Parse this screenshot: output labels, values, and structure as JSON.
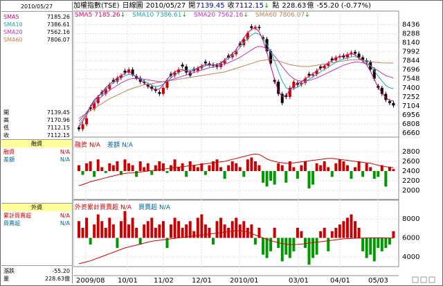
{
  "header": {
    "name": "加權指數(TSE)",
    "chart_kind": "日線圖",
    "date": "2010/05/27",
    "open_label": "開",
    "open": "7139.45",
    "close_label": "收",
    "close": "7112.15",
    "arrow": "↓",
    "unit_label": "點",
    "volume": "228.63",
    "volume_unit": "億",
    "change": "-55.20 (-0.77%)"
  },
  "left_panel": {
    "date": "2010/05/27",
    "ma": [
      {
        "label": "SMA5",
        "value": "7185.26",
        "color": "#d4006a"
      },
      {
        "label": "SMA10",
        "value": "7386.61",
        "color": "#1aa7b0"
      },
      {
        "label": "SMA20",
        "value": "7562.16",
        "color": "#c030c0"
      },
      {
        "label": "SMA60",
        "value": "7806.07",
        "color": "#c08050"
      }
    ],
    "ohlc": [
      {
        "label": "開",
        "value": "7139.45"
      },
      {
        "label": "高",
        "value": "7170.96"
      },
      {
        "label": "低",
        "value": "7112.15"
      },
      {
        "label": "收",
        "value": "7112.15"
      }
    ],
    "margin_header": "融資",
    "margin_rows": [
      {
        "label": "融資",
        "value": "N/A"
      },
      {
        "label": "差額",
        "value": "N/A"
      }
    ],
    "foreign_header": "外資",
    "foreign_rows": [
      {
        "label": "累計買賣超",
        "value": "N/A"
      },
      {
        "label": "買賣超",
        "value": "N/A"
      }
    ],
    "bottom_rows": [
      {
        "label": "漲跌",
        "value": "-55.20"
      },
      {
        "label": "量",
        "value": "228.63億"
      }
    ]
  },
  "ma_legend": [
    {
      "label": "SMA5",
      "value": "7185.26",
      "arrow": "↓",
      "color": "#d4006a"
    },
    {
      "label": "SMA10",
      "value": "7386.61",
      "arrow": "↓",
      "color": "#1aa7b0"
    },
    {
      "label": "SMA20",
      "value": "7562.16",
      "arrow": "↓",
      "color": "#c030c0"
    },
    {
      "label": "SMA60",
      "value": "7806.07",
      "arrow": "↓",
      "color": "#c08050"
    }
  ],
  "margin_legend": [
    {
      "label": "融資",
      "value": "N/A",
      "color": "#cc0000"
    },
    {
      "label": "差額",
      "value": "N/A",
      "color": "#006699"
    }
  ],
  "foreign_legend": [
    {
      "label": "外資累計買賣超",
      "value": "N/A",
      "color": "#cc0000"
    },
    {
      "label": "買賣超",
      "value": "N/A",
      "color": "#006699"
    }
  ],
  "chart_data": {
    "type": "candlestick",
    "price_axis": {
      "ticks": [
        8436,
        8288,
        8140,
        7992,
        7844,
        7696,
        7548,
        7400,
        7252,
        7104,
        6956,
        6808,
        6660
      ],
      "range": [
        6590,
        8500
      ]
    },
    "margin_axis": {
      "ticks": [
        2800,
        2600,
        2400,
        2200,
        2000
      ],
      "range": [
        1800,
        2900
      ]
    },
    "foreign_axis": {
      "ticks": [
        8000,
        6000,
        4000
      ],
      "range": [
        3000,
        9000
      ]
    },
    "x_ticks": [
      "2009/08",
      "10/01",
      "11/02",
      "12/01",
      "2010/01",
      "03/01",
      "04/01",
      "05/03"
    ],
    "close_path": [
      6720,
      6800,
      6900,
      7050,
      7150,
      7250,
      7300,
      7380,
      7450,
      7500,
      7560,
      7600,
      7650,
      7700,
      7620,
      7560,
      7500,
      7480,
      7420,
      7380,
      7350,
      7300,
      7400,
      7520,
      7600,
      7650,
      7700,
      7750,
      7650,
      7600,
      7680,
      7720,
      7760,
      7800,
      7780,
      7760,
      7740,
      7800,
      7850,
      7900,
      7950,
      8000,
      8100,
      8200,
      8300,
      8380,
      8400,
      8380,
      8200,
      8000,
      7800,
      7500,
      7300,
      7150,
      7250,
      7400,
      7500,
      7450,
      7480,
      7550,
      7600,
      7620,
      7680,
      7720,
      7760,
      7800,
      7850,
      7900,
      7920,
      7900,
      7950,
      7980,
      7960,
      7900,
      7850,
      7820,
      7700,
      7550,
      7400,
      7300,
      7200,
      7150,
      7110
    ],
    "sma5": [
      6760,
      6850,
      6950,
      7100,
      7200,
      7260,
      7320,
      7400,
      7460,
      7510,
      7560,
      7600,
      7640,
      7680,
      7620,
      7580,
      7530,
      7480,
      7430,
      7390,
      7370,
      7380,
      7450,
      7540,
      7610,
      7660,
      7690,
      7700,
      7670,
      7660,
      7690,
      7730,
      7760,
      7780,
      7780,
      7770,
      7780,
      7810,
      7860,
      7910,
      7960,
      8030,
      8120,
      8220,
      8300,
      8360,
      8380,
      8320,
      8180,
      7980,
      7760,
      7540,
      7350,
      7250,
      7270,
      7360,
      7440,
      7470,
      7500,
      7550,
      7590,
      7630,
      7680,
      7720,
      7760,
      7810,
      7850,
      7890,
      7910,
      7920,
      7940,
      7960,
      7940,
      7890,
      7840,
      7780,
      7670,
      7540,
      7410,
      7320,
      7240,
      7190,
      7185
    ],
    "sma10": [
      6800,
      6880,
      6980,
      7090,
      7180,
      7250,
      7310,
      7370,
      7430,
      7480,
      7520,
      7560,
      7600,
      7620,
      7610,
      7580,
      7550,
      7510,
      7470,
      7440,
      7420,
      7430,
      7460,
      7510,
      7560,
      7610,
      7650,
      7680,
      7690,
      7690,
      7700,
      7720,
      7740,
      7760,
      7770,
      7770,
      7780,
      7800,
      7840,
      7880,
      7930,
      7990,
      8060,
      8140,
      8210,
      8270,
      8300,
      8280,
      8210,
      8110,
      7990,
      7840,
      7670,
      7510,
      7400,
      7370,
      7380,
      7410,
      7450,
      7500,
      7540,
      7580,
      7620,
      7660,
      7700,
      7740,
      7780,
      7820,
      7850,
      7870,
      7890,
      7910,
      7910,
      7890,
      7860,
      7820,
      7760,
      7680,
      7590,
      7510,
      7440,
      7400,
      7386
    ],
    "sma20": [
      6850,
      6920,
      7000,
      7080,
      7150,
      7210,
      7260,
      7310,
      7360,
      7400,
      7440,
      7480,
      7510,
      7540,
      7550,
      7550,
      7550,
      7540,
      7530,
      7520,
      7510,
      7500,
      7500,
      7510,
      7530,
      7550,
      7570,
      7590,
      7610,
      7630,
      7650,
      7670,
      7690,
      7710,
      7730,
      7740,
      7750,
      7770,
      7790,
      7810,
      7840,
      7870,
      7900,
      7940,
      7980,
      8020,
      8060,
      8080,
      8070,
      8040,
      7990,
      7920,
      7840,
      7750,
      7670,
      7600,
      7550,
      7520,
      7510,
      7510,
      7520,
      7540,
      7560,
      7590,
      7620,
      7650,
      7680,
      7710,
      7740,
      7770,
      7790,
      7810,
      7820,
      7820,
      7810,
      7790,
      7760,
      7720,
      7680,
      7640,
      7600,
      7580,
      7562
    ],
    "sma60": [
      6900,
      6940,
      6980,
      7020,
      7060,
      7100,
      7140,
      7180,
      7220,
      7250,
      7280,
      7310,
      7340,
      7370,
      7390,
      7410,
      7430,
      7450,
      7460,
      7470,
      7480,
      7490,
      7500,
      7510,
      7520,
      7530,
      7540,
      7550,
      7560,
      7570,
      7580,
      7590,
      7600,
      7610,
      7620,
      7630,
      7640,
      7650,
      7660,
      7680,
      7700,
      7720,
      7740,
      7760,
      7780,
      7800,
      7820,
      7840,
      7850,
      7860,
      7860,
      7850,
      7840,
      7820,
      7800,
      7780,
      7770,
      7760,
      7750,
      7750,
      7750,
      7760,
      7770,
      7780,
      7790,
      7800,
      7810,
      7820,
      7830,
      7840,
      7850,
      7860,
      7860,
      7860,
      7850,
      7840,
      7830,
      7820,
      7815,
      7810,
      7808,
      7807,
      7806
    ],
    "margin_bars_pattern": [
      3,
      -2,
      4,
      5,
      -3,
      6,
      2,
      -1,
      4,
      3,
      5,
      -2,
      6,
      4,
      3,
      -3,
      5,
      2,
      4,
      -2,
      3,
      5,
      4,
      -1,
      3,
      6,
      2,
      4,
      -3,
      5,
      3,
      2,
      4,
      -2,
      3,
      5,
      6,
      2,
      -4,
      3,
      5,
      4,
      2,
      -3,
      6,
      7,
      5,
      3,
      -6,
      -8,
      -5,
      -7,
      4,
      3,
      -6,
      5,
      2,
      -4,
      3,
      5,
      -9,
      -7,
      4,
      3,
      5,
      2,
      -3,
      4,
      6,
      5,
      3,
      -4,
      2,
      5,
      -3,
      4,
      2,
      -4,
      -3,
      3,
      -8,
      2,
      1
    ],
    "margin_line": [
      2100,
      2120,
      2150,
      2180,
      2200,
      2220,
      2240,
      2260,
      2280,
      2300,
      2320,
      2340,
      2350,
      2360,
      2360,
      2370,
      2380,
      2390,
      2400,
      2410,
      2420,
      2430,
      2440,
      2450,
      2460,
      2470,
      2480,
      2490,
      2500,
      2510,
      2520,
      2530,
      2540,
      2550,
      2560,
      2570,
      2580,
      2590,
      2600,
      2620,
      2640,
      2660,
      2680,
      2700,
      2720,
      2740,
      2750,
      2740,
      2700,
      2650,
      2620,
      2600,
      2580,
      2570,
      2560,
      2560,
      2570,
      2580,
      2590,
      2600,
      2610,
      2620,
      2630,
      2640,
      2650,
      2660,
      2660,
      2650,
      2640,
      2630,
      2620,
      2610,
      2600,
      2590,
      2580,
      2570,
      2560,
      2540,
      2520,
      2500,
      2490,
      2480,
      2470
    ],
    "foreign_bars_pattern": [
      5,
      3,
      6,
      -2,
      4,
      7,
      5,
      3,
      6,
      4,
      -3,
      5,
      8,
      4,
      6,
      3,
      -2,
      4,
      5,
      6,
      3,
      4,
      5,
      -3,
      4,
      6,
      5,
      3,
      4,
      5,
      2,
      6,
      7,
      4,
      3,
      -2,
      5,
      6,
      4,
      3,
      5,
      6,
      4,
      5,
      3,
      4,
      -2,
      3,
      -5,
      -6,
      -4,
      3,
      -3,
      -7,
      -5,
      -6,
      -4,
      3,
      2,
      -3,
      -8,
      -6,
      -5,
      2,
      3,
      -4,
      2,
      3,
      4,
      5,
      6,
      7,
      5,
      3,
      -4,
      -6,
      -5,
      -7,
      -3,
      -4,
      -3,
      -2,
      2
    ],
    "foreign_line": [
      3300,
      3400,
      3500,
      3600,
      3750,
      3900,
      4050,
      4200,
      4350,
      4500,
      4650,
      4800,
      4950,
      5050,
      5150,
      5250,
      5350,
      5450,
      5550,
      5650,
      5700,
      5750,
      5800,
      5850,
      5900,
      5950,
      6000,
      6050,
      6100,
      6150,
      6200,
      6250,
      6300,
      6350,
      6400,
      6450,
      6500,
      6550,
      6600,
      6650,
      6700,
      6750,
      6750,
      6700,
      6600,
      6450,
      6300,
      6150,
      6000,
      5850,
      5700,
      5600,
      5500,
      5400,
      5350,
      5300,
      5300,
      5320,
      5350,
      5400,
      5450,
      5500,
      5550,
      5600,
      5650,
      5700,
      5750,
      5800,
      5850,
      5900,
      5920,
      5940,
      5960,
      5970,
      5980,
      5990,
      6000,
      6000,
      6000,
      6000,
      5990,
      5980,
      5970
    ]
  }
}
